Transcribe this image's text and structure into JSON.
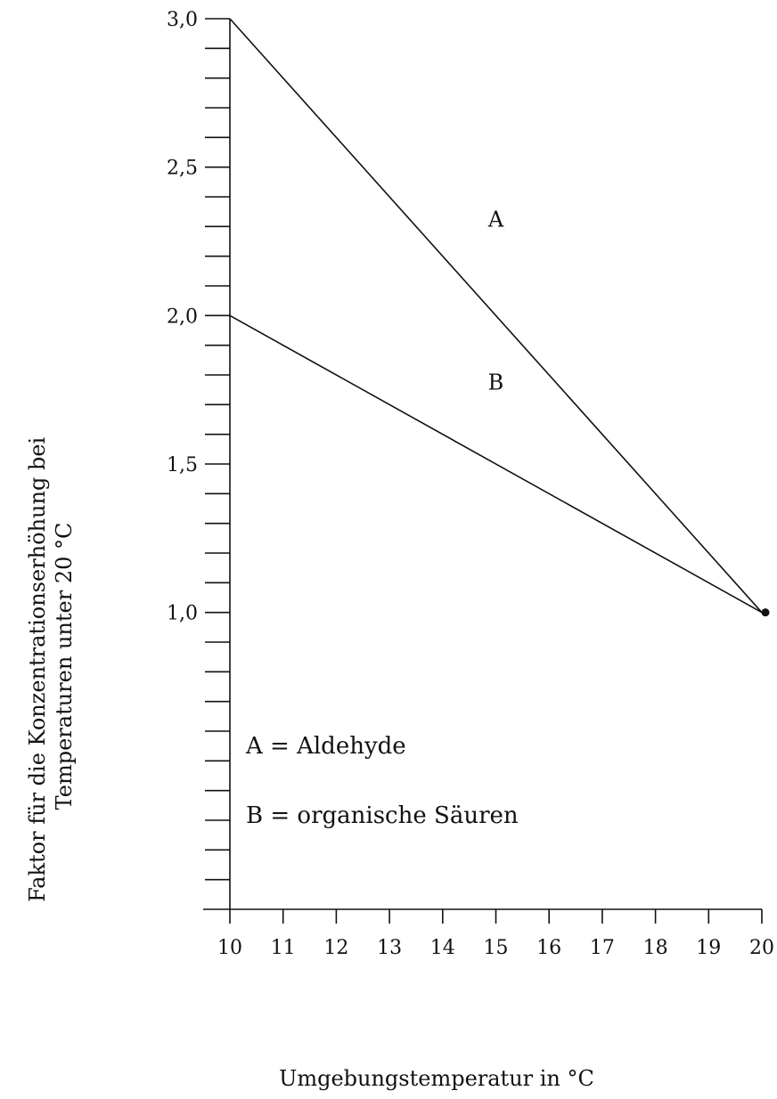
{
  "chart_data": {
    "type": "line",
    "title": "",
    "xlabel": "Umgebungstemperatur in °C",
    "ylabel_lines": [
      "Faktor für die Konzentrationserhöhung bei",
      "Temperaturen unter 20 °C"
    ],
    "xlim": [
      10,
      20
    ],
    "ylim": [
      0,
      3.0
    ],
    "x_ticks": [
      10,
      11,
      12,
      13,
      14,
      15,
      16,
      17,
      18,
      19,
      20
    ],
    "x_tick_labels": [
      "10",
      "11",
      "12",
      "13",
      "14",
      "15",
      "16",
      "17",
      "18",
      "19",
      "20"
    ],
    "y_tick_labels": [
      {
        "value": 3.0,
        "label": "3,0"
      },
      {
        "value": 2.5,
        "label": "2,5"
      },
      {
        "value": 2.0,
        "label": "2,0"
      },
      {
        "value": 1.5,
        "label": "1,5"
      },
      {
        "value": 1.0,
        "label": "1,0"
      }
    ],
    "y_minor_tick_step": 0.1,
    "series": [
      {
        "name": "A",
        "x": [
          10,
          20
        ],
        "y": [
          3.0,
          1.0
        ]
      },
      {
        "name": "B",
        "x": [
          10,
          20
        ],
        "y": [
          2.0,
          1.0
        ]
      }
    ],
    "series_label_positions": [
      {
        "name": "A",
        "x": 15,
        "y": 2.3
      },
      {
        "name": "B",
        "x": 15,
        "y": 1.75
      }
    ],
    "end_point": {
      "x": 20,
      "y": 1.0
    },
    "legend_lines": [
      "A = Aldehyde",
      "B = organische Säuren"
    ],
    "legend_placement": "lower-left",
    "grid": false
  }
}
